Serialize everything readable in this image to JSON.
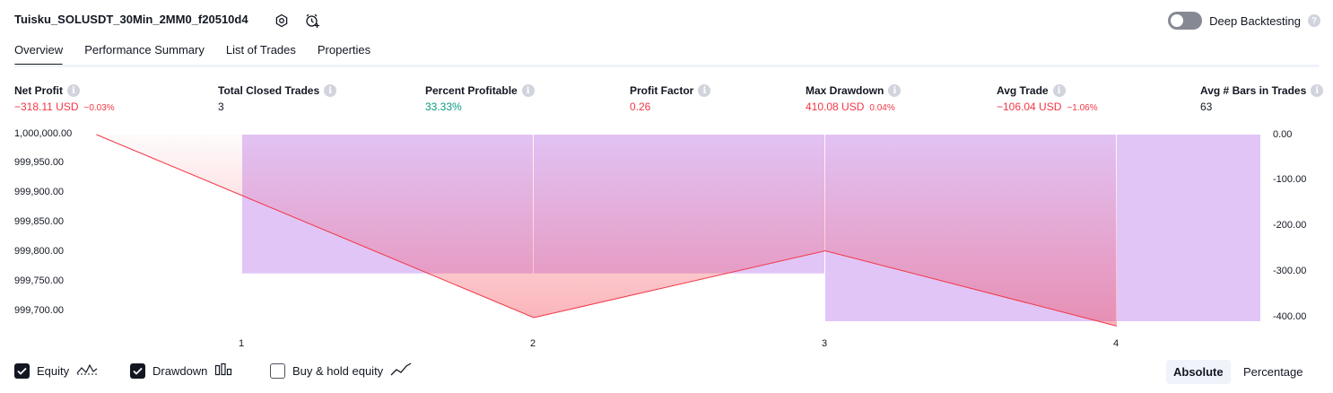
{
  "header": {
    "title": "Tuisku_SOLUSDT_30Min_2MM0_f20510d4",
    "deep_backtesting_label": "Deep Backtesting",
    "deep_backtesting_on": false
  },
  "tabs": [
    {
      "label": "Overview",
      "active": true
    },
    {
      "label": "Performance Summary",
      "active": false
    },
    {
      "label": "List of Trades",
      "active": false
    },
    {
      "label": "Properties",
      "active": false
    }
  ],
  "stats": [
    {
      "label": "Net Profit",
      "value": "−318.11 USD",
      "pct": "−0.03%",
      "tone": "neg"
    },
    {
      "label": "Total Closed Trades",
      "value": "3",
      "pct": "",
      "tone": "neutral"
    },
    {
      "label": "Percent Profitable",
      "value": "33.33%",
      "pct": "",
      "tone": "pos"
    },
    {
      "label": "Profit Factor",
      "value": "0.26",
      "pct": "",
      "tone": "neg"
    },
    {
      "label": "Max Drawdown",
      "value": "410.08 USD",
      "pct": "0.04%",
      "tone": "neg"
    },
    {
      "label": "Avg Trade",
      "value": "−106.04 USD",
      "pct": "−1.06%",
      "tone": "neg"
    },
    {
      "label": "Avg # Bars in Trades",
      "value": "63",
      "pct": "",
      "tone": "neutral"
    }
  ],
  "colors": {
    "accent": "#131722",
    "negative": "#f23645",
    "positive": "#089981",
    "drawdown_fill": "#e1c5f7",
    "equity_line": "#f23645"
  },
  "chart_data": {
    "type": "area",
    "x": [
      1,
      2,
      3,
      4
    ],
    "y_left_ticks": [
      "1,000,000.00",
      "999,950.00",
      "999,900.00",
      "999,850.00",
      "999,800.00",
      "999,750.00",
      "999,700.00"
    ],
    "y_left_range": [
      999690,
      1000000
    ],
    "y_right_ticks": [
      "0.00",
      "-100.00",
      "-200.00",
      "-300.00",
      "-400.00"
    ],
    "y_right_range": [
      -410.08,
      0
    ],
    "x_ticks": [
      "1",
      "2",
      "3",
      "4"
    ],
    "series": [
      {
        "name": "Equity",
        "type": "line",
        "x": [
          0.5,
          2,
          3,
          4
        ],
        "values": [
          1000000,
          999696,
          999807,
          999682
        ]
      },
      {
        "name": "Drawdown",
        "type": "bar",
        "x": [
          1.5,
          2.5,
          3.5,
          4.5
        ],
        "values": [
          -305,
          -305,
          -410.08,
          -410.08
        ]
      }
    ]
  },
  "footer": {
    "legend": [
      {
        "label": "Equity",
        "checked": true,
        "icon": "equity-icon"
      },
      {
        "label": "Drawdown",
        "checked": true,
        "icon": "drawdown-icon"
      },
      {
        "label": "Buy & hold equity",
        "checked": false,
        "icon": "buy-hold-icon"
      }
    ],
    "mode_absolute": "Absolute",
    "mode_percentage": "Percentage",
    "active_mode": "Absolute"
  }
}
